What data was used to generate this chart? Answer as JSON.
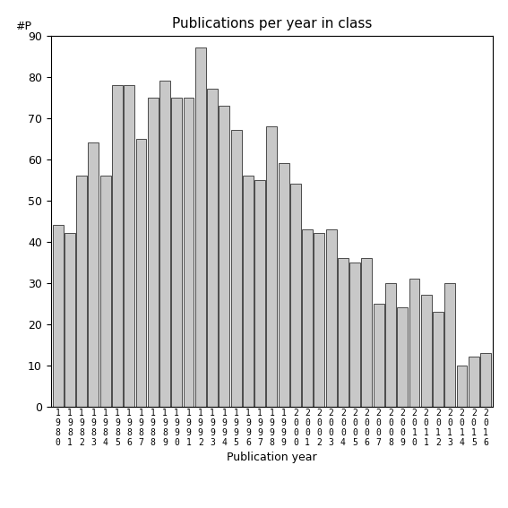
{
  "title": "Publications per year in class",
  "xlabel": "Publication year",
  "ylabel": "#P",
  "bar_color": "#c8c8c8",
  "bar_edgecolor": "#333333",
  "ylim": [
    0,
    90
  ],
  "yticks": [
    0,
    10,
    20,
    30,
    40,
    50,
    60,
    70,
    80,
    90
  ],
  "years_actual": [
    1980,
    1981,
    1982,
    1983,
    1984,
    1985,
    1986,
    1987,
    1988,
    1989,
    1990,
    1991,
    1992,
    1993,
    1994,
    1995,
    1996,
    1997,
    1998,
    1999,
    2000,
    2001,
    2002,
    2003,
    2004,
    2005,
    2006,
    2007,
    2008,
    2009,
    2010,
    2011,
    2012,
    2013,
    2014,
    2015,
    2016
  ],
  "values_actual": [
    44,
    42,
    56,
    64,
    56,
    78,
    78,
    65,
    75,
    79,
    75,
    75,
    87,
    77,
    73,
    67,
    56,
    55,
    68,
    59,
    54,
    43,
    42,
    43,
    36,
    35,
    36,
    25,
    30,
    24,
    31,
    27,
    23,
    30,
    10,
    12,
    13
  ],
  "background_color": "#ffffff",
  "title_fontsize": 11,
  "label_fontsize": 9,
  "tick_fontsize": 9,
  "xtick_fontsize": 7
}
